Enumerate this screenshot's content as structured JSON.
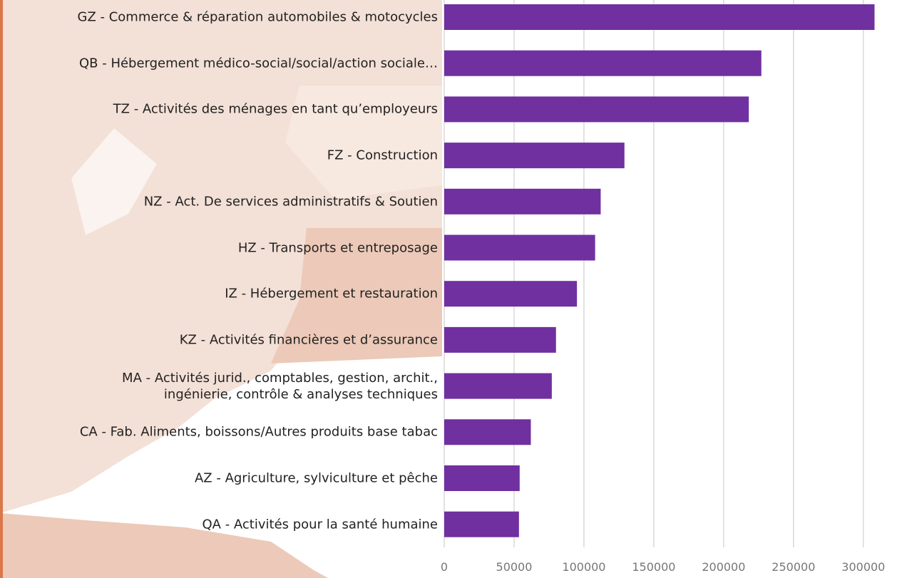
{
  "chart_data": {
    "type": "barh",
    "categories": [
      "GZ - Commerce & réparation automobiles & motocycles",
      "QB - Hébergement médico-social/social/action sociale…",
      "TZ -  Activités des ménages en tant qu’employeurs",
      "FZ - Construction",
      "NZ - Act. De services administratifs & Soutien",
      "HZ - Transports et entreposage",
      "IZ - Hébergement et restauration",
      "KZ - Activités financières et d’assurance",
      "MA - Activités jurid., comptables, gestion, archit.,\ningénierie, contrôle & analyses techniques",
      "CA - Fab. Aliments, boissons/Autres produits base tabac",
      "AZ - Agriculture, sylviculture et pêche",
      "QA - Activités pour la santé humaine"
    ],
    "values": [
      308000,
      227000,
      218000,
      129000,
      112000,
      108000,
      95000,
      80000,
      77000,
      62000,
      54000,
      53500
    ],
    "color": "#7030a0",
    "xlim": [
      0,
      320000
    ],
    "xticks": [
      0,
      50000,
      100000,
      150000,
      200000,
      250000,
      300000
    ],
    "grid": true
  }
}
